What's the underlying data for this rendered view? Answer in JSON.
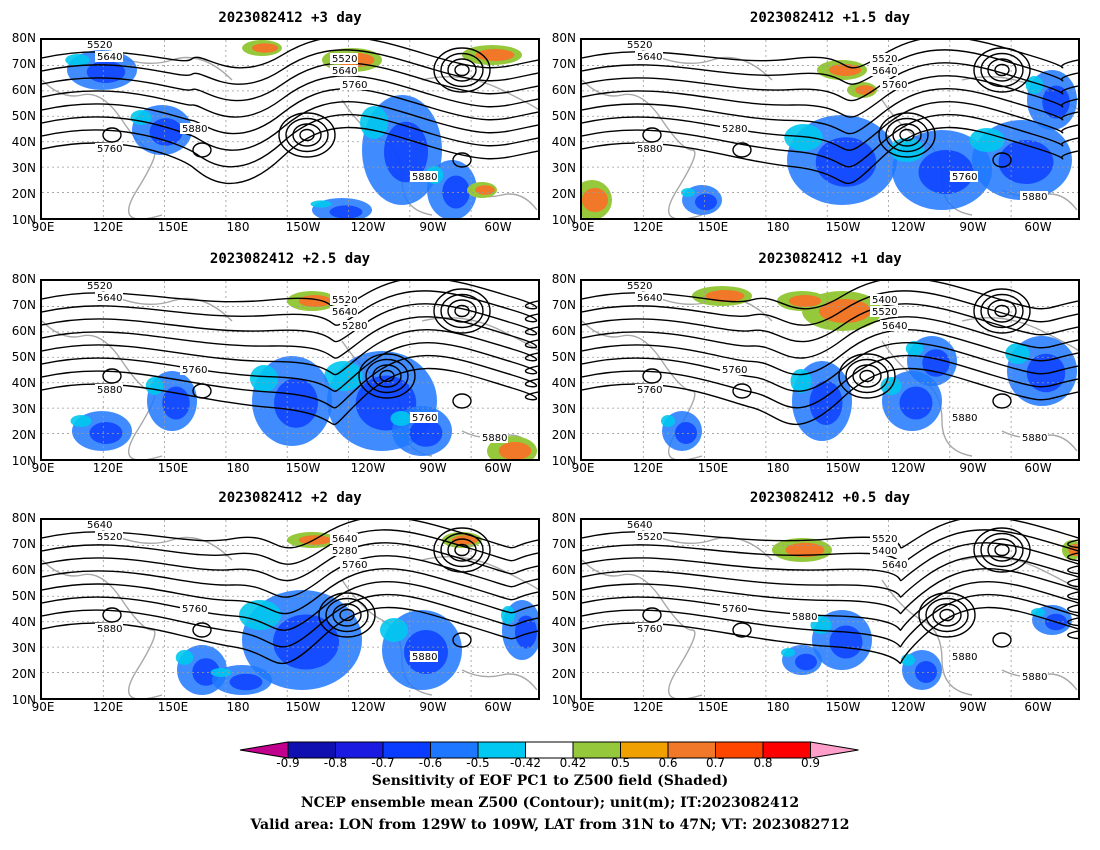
{
  "panels": [
    {
      "title": "2023082412 +3 day",
      "contour_labels": [
        "5520",
        "5640",
        "5520",
        "5640",
        "5760",
        "5880",
        "5760",
        "5880"
      ]
    },
    {
      "title": "2023082412 +1.5 day",
      "contour_labels": [
        "5520",
        "5640",
        "5520",
        "5640",
        "5760",
        "5280",
        "5880",
        "5760",
        "5880"
      ]
    },
    {
      "title": "2023082412 +2.5 day",
      "contour_labels": [
        "5520",
        "5640",
        "5520",
        "5640",
        "5280",
        "5760",
        "5880",
        "5760",
        "5880"
      ]
    },
    {
      "title": "2023082412 +1 day",
      "contour_labels": [
        "5520",
        "5640",
        "5400",
        "5520",
        "5640",
        "5760",
        "5760",
        "5880",
        "5880"
      ]
    },
    {
      "title": "2023082412 +2 day",
      "contour_labels": [
        "5640",
        "5520",
        "5640",
        "5280",
        "5760",
        "5760",
        "5880",
        "5880"
      ]
    },
    {
      "title": "2023082412 +0.5 day",
      "contour_labels": [
        "5640",
        "5520",
        "5520",
        "5400",
        "5640",
        "5760",
        "5760",
        "5880",
        "5880",
        "5880"
      ]
    }
  ],
  "lat_ticks": [
    "80N",
    "70N",
    "60N",
    "50N",
    "40N",
    "30N",
    "20N",
    "10N"
  ],
  "lon_ticks": [
    "90E",
    "120E",
    "150E",
    "180",
    "150W",
    "120W",
    "90W",
    "60W"
  ],
  "colorbar": {
    "ticks": [
      "-0.9",
      "-0.8",
      "-0.7",
      "-0.6",
      "-0.5",
      "-0.42",
      "0.42",
      "0.5",
      "0.6",
      "0.7",
      "0.8",
      "0.9"
    ],
    "colors": [
      "#c0008c",
      "#1010b0",
      "#1a1ae0",
      "#0a3cff",
      "#1e78ff",
      "#00c8f0",
      "#ffffff",
      "#96c83c",
      "#f0a000",
      "#f07828",
      "#ff4600",
      "#ff0000",
      "#ff9ec8"
    ]
  },
  "caption": {
    "line1": "Sensitivity of EOF PC1 to Z500 field (Shaded)",
    "line2": "NCEP ensemble mean Z500 (Contour); unit(m); IT:2023082412",
    "line3": "Valid area: LON from 129W to 109W, LAT from 31N to 47N; VT: 2023082712"
  }
}
